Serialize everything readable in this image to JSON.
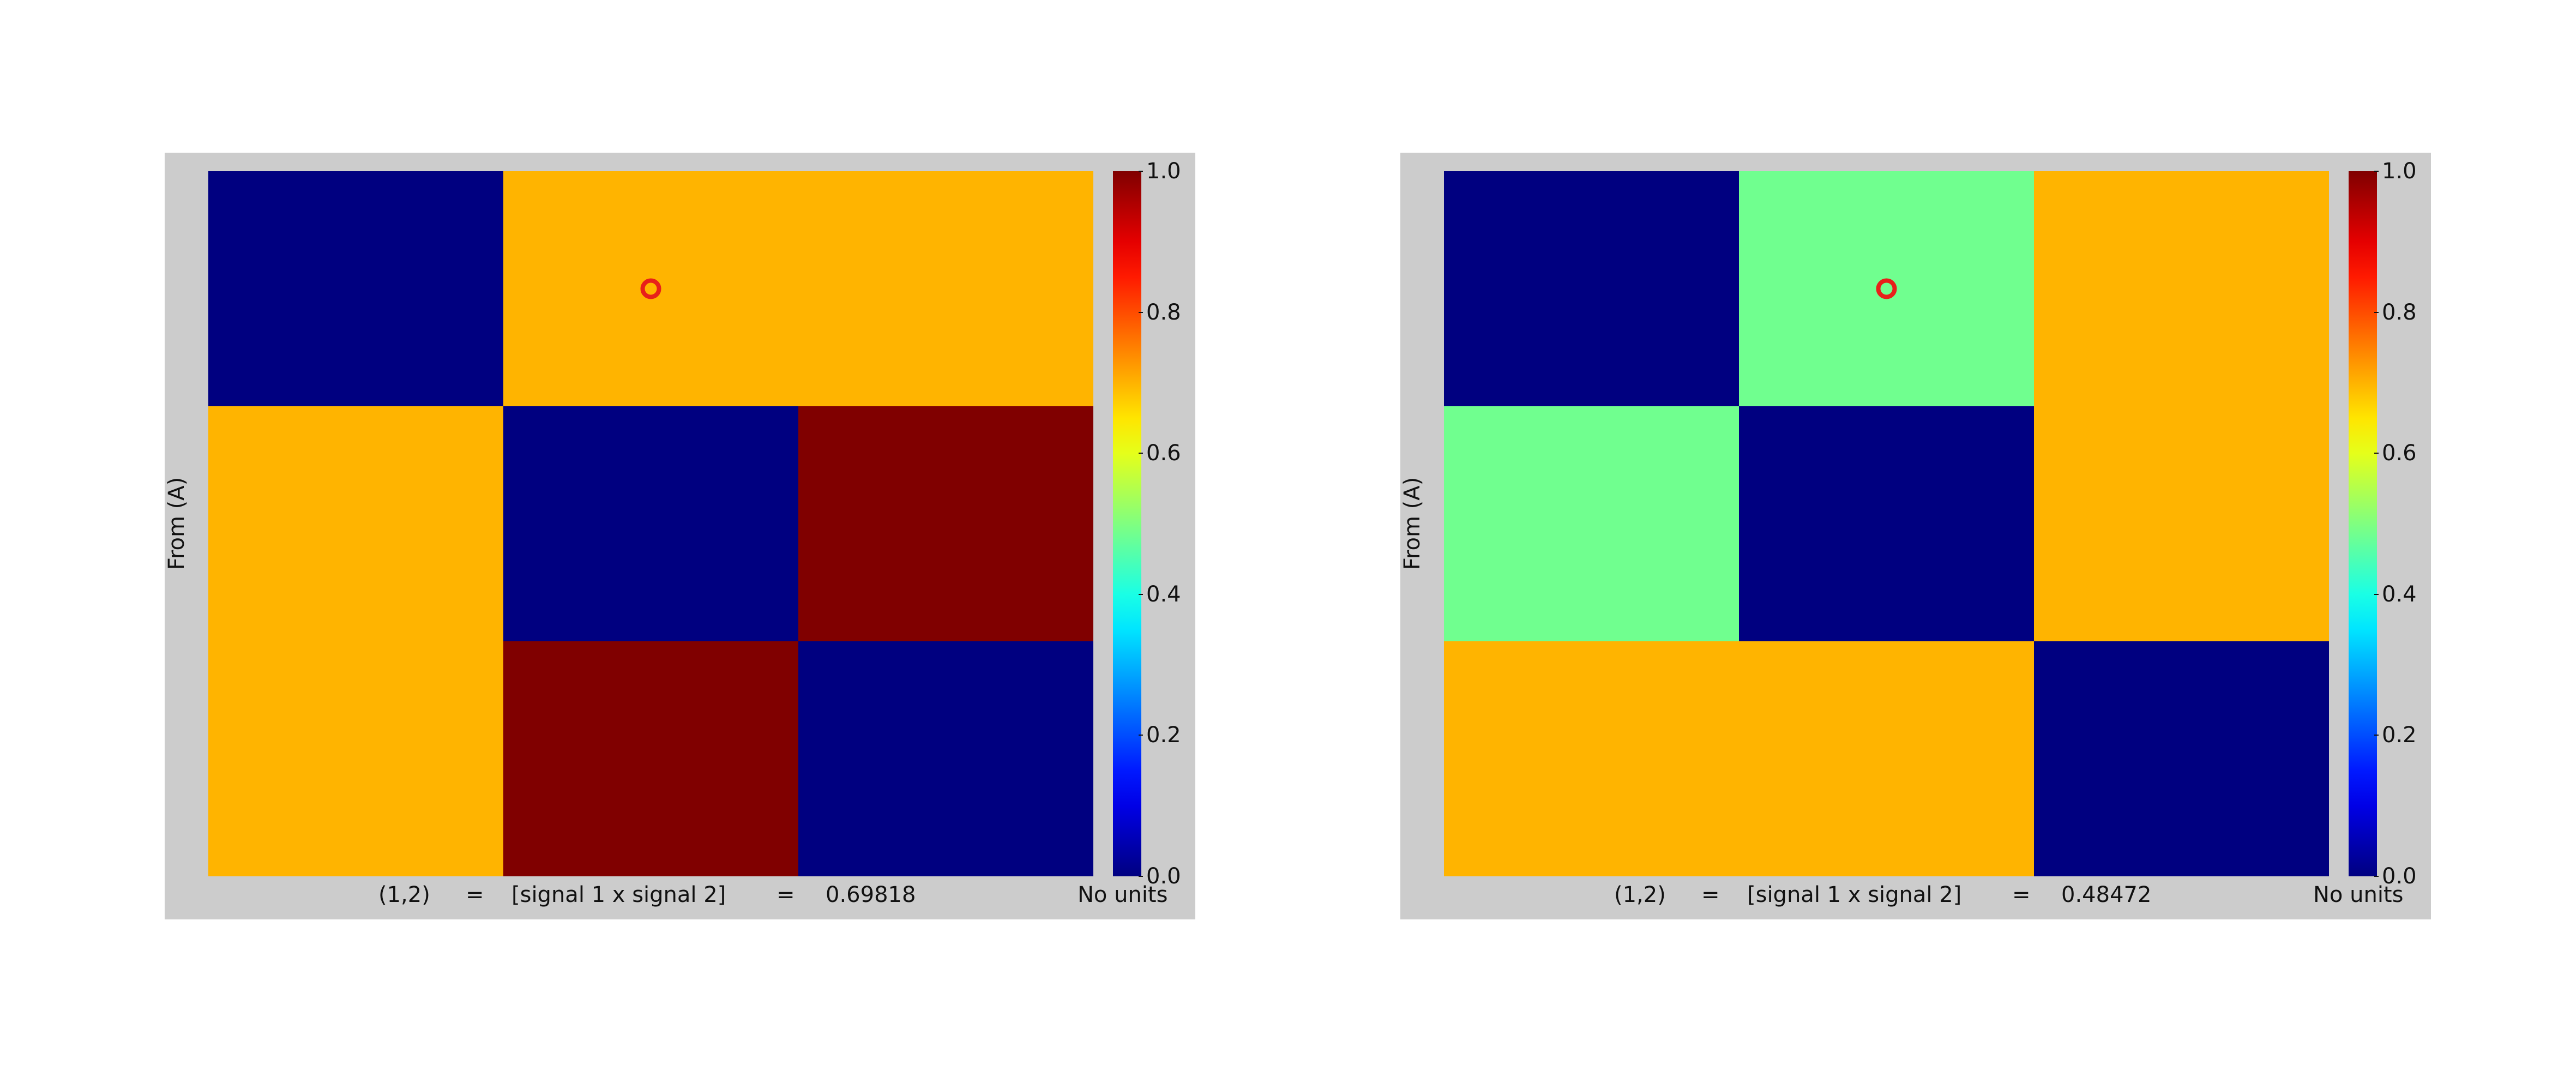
{
  "chart_data": [
    {
      "type": "heatmap",
      "ylabel": "From (A)",
      "size": 3,
      "values": [
        [
          0.0,
          0.69818,
          0.69818
        ],
        [
          0.69818,
          0.0,
          1.0
        ],
        [
          0.69818,
          1.0,
          0.0
        ]
      ],
      "selected": {
        "row": 1,
        "col": 2
      },
      "colormap": "jet",
      "clim": [
        0.0,
        1.0
      ],
      "colorbar_ticks": [
        "0.0",
        "0.2",
        "0.4",
        "0.6",
        "0.8",
        "1.0"
      ],
      "status": {
        "index": "(1,2)",
        "eq1": "=",
        "expr": "[signal 1 x signal 2]",
        "eq2": "=",
        "value": "0.69818",
        "units": "No units"
      }
    },
    {
      "type": "heatmap",
      "ylabel": "From (A)",
      "size": 3,
      "values": [
        [
          0.0,
          0.48472,
          0.69818
        ],
        [
          0.48472,
          0.0,
          0.69818
        ],
        [
          0.69818,
          0.69818,
          0.0
        ]
      ],
      "selected": {
        "row": 1,
        "col": 2
      },
      "colormap": "jet",
      "clim": [
        0.0,
        1.0
      ],
      "colorbar_ticks": [
        "0.0",
        "0.2",
        "0.4",
        "0.6",
        "0.8",
        "1.0"
      ],
      "status": {
        "index": "(1,2)",
        "eq1": "=",
        "expr": "[signal 1 x signal 2]",
        "eq2": "=",
        "value": "0.48472",
        "units": "No units"
      }
    }
  ],
  "colors": {
    "panel_bg": "#cccccc",
    "marker": "#e8201a"
  }
}
